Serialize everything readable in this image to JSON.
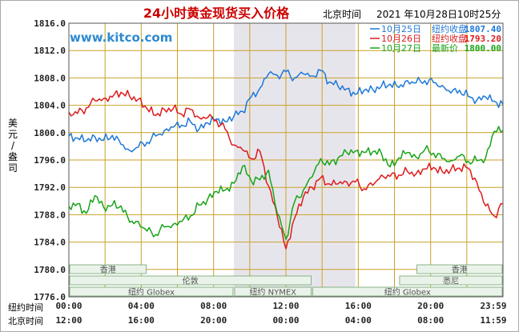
{
  "chart_data": {
    "type": "line",
    "title": "24小时黄金现货买入价格",
    "timezone_label": "北京时间",
    "timestamp": "2021 年10月28日10时25分",
    "watermark": "www.kitco.com",
    "ylabel": "美元/盎司",
    "ylim": [
      1776,
      1816
    ],
    "y_ticks": [
      "1816.0",
      "1812.0",
      "1808.0",
      "1804.0",
      "1800.0",
      "1796.0",
      "1792.0",
      "1788.0",
      "1784.0",
      "1780.0",
      "1776.0"
    ],
    "x_row_labels": [
      "纽约时间",
      "北京时间"
    ],
    "x_ticks_newyork": [
      "00:00",
      "04:00",
      "08:00",
      "12:00",
      "16:00",
      "20:00",
      "23:59"
    ],
    "x_ticks_beijing": [
      "12:00",
      "16:00",
      "20:00",
      "00:00",
      "04:00",
      "08:00",
      "11:59"
    ],
    "x": [
      0,
      2,
      4,
      6,
      8,
      10,
      12,
      14,
      16,
      18,
      20,
      22,
      24,
      26,
      28,
      30,
      32,
      34,
      36,
      38,
      40,
      42,
      44,
      46,
      48,
      50,
      52,
      54,
      56,
      58,
      60,
      62,
      64,
      66,
      68,
      70,
      72,
      74,
      76,
      78,
      80,
      82,
      84,
      86,
      88,
      90,
      92,
      94,
      96,
      98,
      100
    ],
    "series": [
      {
        "name": "10月25日",
        "legend_text": "纽约收盘",
        "legend_value": "1807.40",
        "color": "#1e78d8",
        "values": [
          1799.5,
          1799.2,
          1798.8,
          1799.4,
          1798.9,
          1799.6,
          1798.3,
          1797.4,
          1797.9,
          1798.6,
          1799.5,
          1800.3,
          1800.8,
          1801.1,
          1801.6,
          1800.5,
          1801.4,
          1802.0,
          1801.6,
          1802.4,
          1803.1,
          1805.2,
          1806.5,
          1808.6,
          1808.4,
          1808.9,
          1808.0,
          1808.6,
          1808.3,
          1809.1,
          1807.4,
          1806.8,
          1806.4,
          1805.6,
          1806.2,
          1806.3,
          1806.8,
          1807.1,
          1806.6,
          1807.6,
          1807.3,
          1807.6,
          1807.3,
          1806.9,
          1805.8,
          1806.2,
          1805.3,
          1804.8,
          1805.2,
          1804.6,
          1804.1
        ]
      },
      {
        "name": "10月26日",
        "legend_text": "纽约收盘",
        "legend_value": "1793.20",
        "color": "#dd1c1c",
        "values": [
          1803.0,
          1802.8,
          1803.6,
          1804.7,
          1805.0,
          1805.2,
          1805.9,
          1805.3,
          1804.9,
          1803.5,
          1802.5,
          1803.4,
          1803.5,
          1802.7,
          1803.4,
          1802.2,
          1802.2,
          1801.8,
          1800.5,
          1798.2,
          1797.5,
          1796.2,
          1797.3,
          1792.2,
          1787.8,
          1783.0,
          1787.5,
          1790.6,
          1792.0,
          1793.4,
          1792.5,
          1792.5,
          1792.8,
          1792.8,
          1791.8,
          1792.3,
          1793.8,
          1793.6,
          1793.8,
          1794.3,
          1794.0,
          1794.7,
          1794.9,
          1794.3,
          1794.6,
          1794.8,
          1794.8,
          1792.7,
          1789.3,
          1787.8,
          1789.6
        ]
      },
      {
        "name": "10月27日",
        "legend_text": "最新价",
        "legend_value": "1800.00",
        "color": "#18a418",
        "values": [
          1789.2,
          1789.6,
          1788.2,
          1790.8,
          1789.1,
          1789.4,
          1789.3,
          1786.9,
          1787.0,
          1785.6,
          1785.1,
          1786.2,
          1786.6,
          1787.0,
          1787.8,
          1789.4,
          1790.3,
          1791.4,
          1791.6,
          1792.6,
          1795.1,
          1793.0,
          1793.1,
          1794.5,
          1788.2,
          1784.4,
          1789.9,
          1791.6,
          1793.5,
          1796.2,
          1795.3,
          1796.3,
          1797.1,
          1797.3,
          1797.1,
          1797.2,
          1797.0,
          1795.0,
          1796.3,
          1797.1,
          1796.4,
          1797.5,
          1797.0,
          1796.2,
          1795.9,
          1796.6,
          1795.8,
          1795.9,
          1796.3,
          1800.2,
          1800.3
        ]
      }
    ],
    "shaded_region_x": [
      38,
      66
    ],
    "market_bands": [
      {
        "label": "香港",
        "row": 0,
        "from": 0,
        "to": 18
      },
      {
        "label": "香港",
        "row": 0,
        "from": 80,
        "to": 100
      },
      {
        "label": "伦敦",
        "row": 1,
        "from": 0,
        "to": 56
      },
      {
        "label": "悉尼",
        "row": 1,
        "from": 76,
        "to": 100
      },
      {
        "label": "纽约 Globex",
        "row": 2,
        "from": 0,
        "to": 38
      },
      {
        "label": "纽约 NYMEX",
        "row": 2,
        "from": 38,
        "to": 56
      },
      {
        "label": "纽约 Globex",
        "row": 2,
        "from": 56,
        "to": 100
      }
    ]
  }
}
